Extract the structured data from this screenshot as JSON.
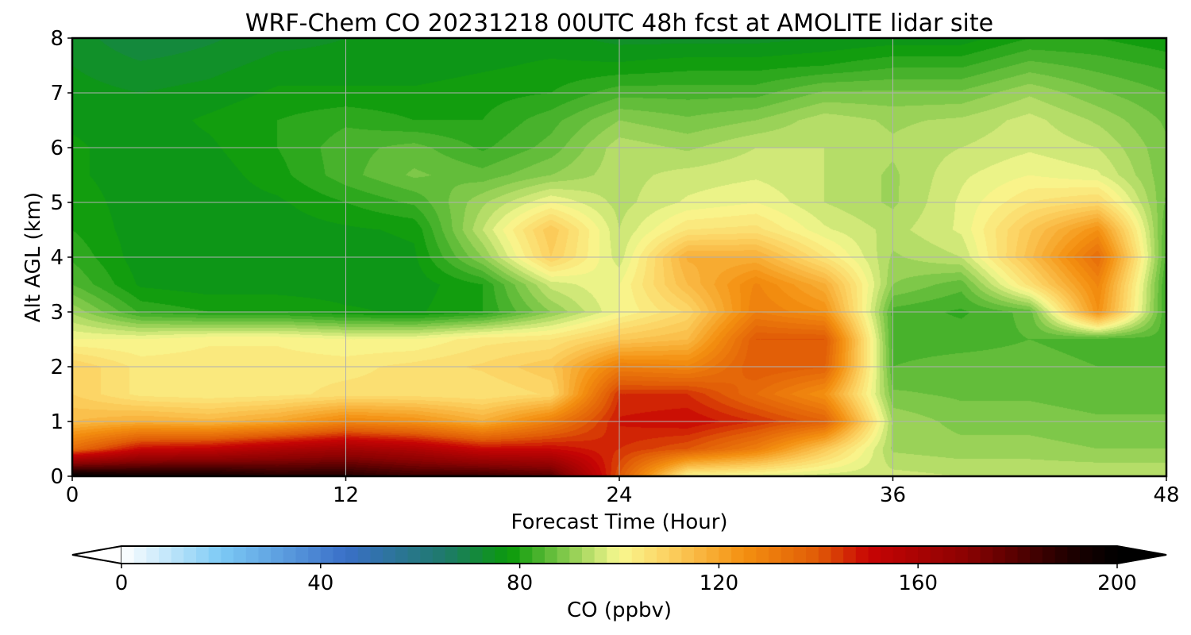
{
  "chart_data": {
    "type": "heatmap",
    "title": "WRF-Chem CO  20231218 00UTC 48h fcst at AMOLITE lidar site",
    "xlabel": "Forecast Time (Hour)",
    "ylabel": "Alt AGL (km)",
    "xlim": [
      0,
      48
    ],
    "ylim": [
      0,
      8
    ],
    "x_ticks": [
      0,
      12,
      24,
      36,
      48
    ],
    "y_ticks": [
      0,
      1,
      2,
      3,
      4,
      5,
      6,
      7,
      8
    ],
    "grid": true,
    "colorbar": {
      "label": "CO  (ppbv)",
      "min": 0,
      "max": 200,
      "ticks": [
        0,
        40,
        80,
        120,
        160,
        200
      ],
      "extend": "both",
      "stops": [
        {
          "value": 0,
          "color": "#ffffff"
        },
        {
          "value": 20,
          "color": "#7ccaf5"
        },
        {
          "value": 45,
          "color": "#3a6fc8"
        },
        {
          "value": 65,
          "color": "#1e7a6a"
        },
        {
          "value": 78,
          "color": "#0a9a0a"
        },
        {
          "value": 90,
          "color": "#8ccd50"
        },
        {
          "value": 100,
          "color": "#f8f890"
        },
        {
          "value": 110,
          "color": "#fcd060"
        },
        {
          "value": 125,
          "color": "#f49010"
        },
        {
          "value": 140,
          "color": "#e05a06"
        },
        {
          "value": 150,
          "color": "#c80404"
        },
        {
          "value": 170,
          "color": "#8a0202"
        },
        {
          "value": 190,
          "color": "#200000"
        },
        {
          "value": 200,
          "color": "#000000"
        }
      ]
    },
    "grid_hours": [
      0,
      3,
      6,
      9,
      12,
      15,
      18,
      21,
      24,
      27,
      30,
      33,
      36,
      39,
      42,
      45,
      48
    ],
    "grid_altitudes_km": [
      0,
      0.5,
      1,
      1.5,
      2,
      2.5,
      3,
      3.5,
      4,
      4.5,
      5,
      5.5,
      6,
      6.5,
      7,
      7.5,
      8
    ],
    "values_ppbv": [
      [
        200,
        195,
        195,
        190,
        190,
        185,
        185,
        180,
        140,
        100,
        98,
        96,
        96,
        95,
        95,
        95,
        95
      ],
      [
        135,
        150,
        152,
        158,
        162,
        158,
        150,
        150,
        145,
        140,
        130,
        112,
        92,
        91,
        91,
        90,
        90
      ],
      [
        115,
        118,
        116,
        120,
        128,
        125,
        118,
        130,
        148,
        150,
        145,
        138,
        92,
        89,
        89,
        88,
        88
      ],
      [
        110,
        104,
        103,
        104,
        106,
        106,
        105,
        108,
        145,
        145,
        135,
        125,
        88,
        87,
        87,
        86,
        86
      ],
      [
        110,
        104,
        104,
        104,
        104,
        106,
        108,
        112,
        130,
        128,
        140,
        138,
        85,
        86,
        86,
        85,
        85
      ],
      [
        100,
        100,
        102,
        102,
        100,
        100,
        104,
        105,
        112,
        115,
        140,
        140,
        84,
        84,
        85,
        84,
        84
      ],
      [
        92,
        82,
        80,
        80,
        78,
        77,
        80,
        90,
        100,
        108,
        130,
        125,
        84,
        82,
        86,
        125,
        82
      ],
      [
        85,
        77,
        76,
        76,
        76,
        76,
        80,
        96,
        100,
        115,
        128,
        118,
        90,
        86,
        106,
        128,
        82
      ],
      [
        82,
        76,
        76,
        76,
        76,
        77,
        90,
        110,
        96,
        118,
        118,
        105,
        92,
        95,
        114,
        135,
        84
      ],
      [
        80,
        76,
        76,
        76,
        77,
        78,
        95,
        112,
        95,
        105,
        106,
        98,
        94,
        98,
        112,
        125,
        85
      ],
      [
        79,
        76,
        76,
        77,
        80,
        83,
        92,
        100,
        94,
        98,
        100,
        95,
        92,
        98,
        105,
        108,
        87
      ],
      [
        78,
        76,
        76,
        79,
        84,
        88,
        86,
        90,
        94,
        96,
        97,
        95,
        92,
        97,
        100,
        98,
        88
      ],
      [
        78,
        76,
        77,
        80,
        84,
        86,
        82,
        86,
        94,
        92,
        95,
        95,
        93,
        95,
        97,
        95,
        88
      ],
      [
        77,
        76,
        78,
        80,
        82,
        80,
        80,
        84,
        90,
        88,
        90,
        94,
        92,
        93,
        96,
        92,
        87
      ],
      [
        76,
        75,
        76,
        78,
        78,
        78,
        79,
        80,
        84,
        84,
        84,
        88,
        88,
        88,
        92,
        88,
        85
      ],
      [
        75,
        73,
        74,
        76,
        76,
        76,
        77,
        78,
        78,
        79,
        79,
        80,
        82,
        82,
        86,
        84,
        82
      ],
      [
        74,
        70,
        72,
        74,
        75,
        75,
        76,
        76,
        74,
        74,
        74,
        75,
        76,
        76,
        80,
        80,
        78
      ]
    ]
  }
}
